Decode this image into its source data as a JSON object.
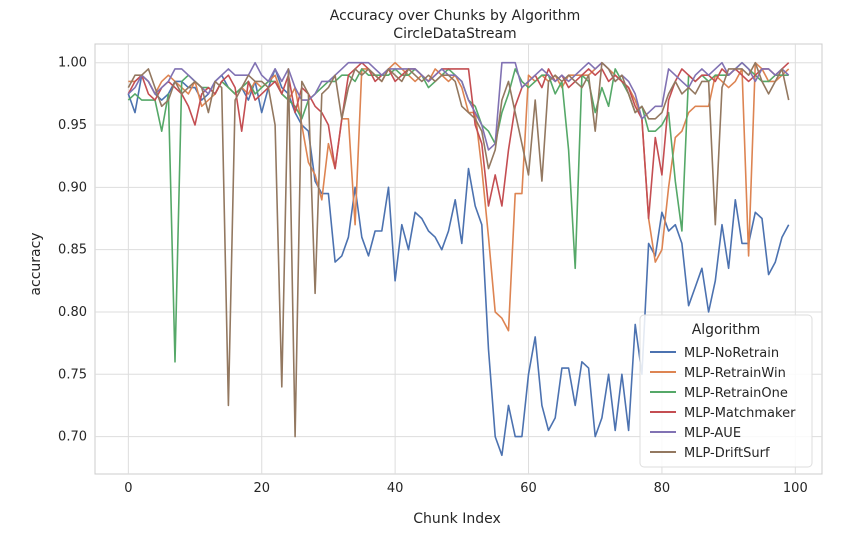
{
  "chart_data": {
    "type": "line",
    "title": "Accuracy over Chunks by Algorithm",
    "subtitle": "CircleDataStream",
    "xlabel": "Chunk Index",
    "ylabel": "accuracy",
    "xlim": [
      -5,
      104
    ],
    "ylim": [
      0.67,
      1.015
    ],
    "xticks": [
      0,
      20,
      40,
      60,
      80,
      100
    ],
    "yticks": [
      0.7,
      0.75,
      0.8,
      0.85,
      0.9,
      0.95,
      1.0
    ],
    "ytick_labels": [
      "0.70",
      "0.75",
      "0.80",
      "0.85",
      "0.90",
      "0.95",
      "1.00"
    ],
    "grid": true,
    "legend": {
      "title": "Algorithm",
      "placement": "lower-right"
    },
    "series": [
      {
        "name": "MLP-NoRetrain",
        "color": "#4c72b0",
        "values": [
          0.975,
          0.96,
          0.99,
          0.985,
          0.975,
          0.97,
          0.975,
          0.985,
          0.985,
          0.98,
          0.98,
          0.97,
          0.975,
          0.985,
          0.99,
          0.98,
          0.975,
          0.98,
          0.97,
          0.985,
          0.96,
          0.98,
          0.995,
          0.98,
          0.975,
          0.96,
          0.95,
          0.945,
          0.905,
          0.895,
          0.895,
          0.84,
          0.845,
          0.86,
          0.9,
          0.86,
          0.845,
          0.865,
          0.865,
          0.9,
          0.825,
          0.87,
          0.85,
          0.88,
          0.875,
          0.865,
          0.86,
          0.85,
          0.865,
          0.89,
          0.855,
          0.915,
          0.885,
          0.87,
          0.77,
          0.7,
          0.685,
          0.725,
          0.7,
          0.7,
          0.75,
          0.78,
          0.725,
          0.705,
          0.715,
          0.755,
          0.755,
          0.725,
          0.76,
          0.755,
          0.7,
          0.715,
          0.75,
          0.705,
          0.75,
          0.705,
          0.79,
          0.75,
          0.855,
          0.845,
          0.88,
          0.865,
          0.87,
          0.855,
          0.805,
          0.82,
          0.835,
          0.8,
          0.825,
          0.87,
          0.835,
          0.89,
          0.855,
          0.855,
          0.88,
          0.875,
          0.83,
          0.84,
          0.86,
          0.87
        ]
      },
      {
        "name": "MLP-RetrainWin",
        "color": "#dd8452",
        "values": [
          0.985,
          0.985,
          0.99,
          0.985,
          0.975,
          0.985,
          0.99,
          0.985,
          0.98,
          0.975,
          0.985,
          0.965,
          0.97,
          0.975,
          0.985,
          0.98,
          0.975,
          0.98,
          0.975,
          0.985,
          0.98,
          0.985,
          0.99,
          0.975,
          0.97,
          0.98,
          0.95,
          0.92,
          0.91,
          0.89,
          0.935,
          0.915,
          0.955,
          0.955,
          0.87,
          0.995,
          0.995,
          0.99,
          0.985,
          0.995,
          1.0,
          0.995,
          0.99,
          0.985,
          0.99,
          0.985,
          0.995,
          0.99,
          0.985,
          0.99,
          0.98,
          0.96,
          0.96,
          0.915,
          0.86,
          0.8,
          0.795,
          0.785,
          0.895,
          0.895,
          0.99,
          0.985,
          0.99,
          0.985,
          0.99,
          0.98,
          0.99,
          0.99,
          0.99,
          0.99,
          0.995,
          1.0,
          0.995,
          0.99,
          0.985,
          0.98,
          0.97,
          0.955,
          0.875,
          0.84,
          0.85,
          0.9,
          0.94,
          0.945,
          0.96,
          0.965,
          0.965,
          0.965,
          0.99,
          0.985,
          0.98,
          0.985,
          0.995,
          0.845,
          1.0,
          0.995,
          0.985,
          0.985,
          0.99,
          0.995
        ]
      },
      {
        "name": "MLP-RetrainOne",
        "color": "#55a868",
        "values": [
          0.97,
          0.975,
          0.97,
          0.97,
          0.97,
          0.945,
          0.975,
          0.76,
          0.985,
          0.99,
          0.985,
          0.98,
          0.98,
          0.975,
          0.985,
          0.98,
          0.975,
          0.98,
          0.985,
          0.975,
          0.98,
          0.985,
          0.985,
          0.975,
          0.97,
          0.965,
          0.955,
          0.97,
          0.975,
          0.98,
          0.985,
          0.985,
          0.99,
          0.99,
          0.985,
          0.995,
          0.99,
          0.99,
          0.99,
          0.99,
          0.995,
          0.99,
          0.99,
          0.995,
          0.99,
          0.98,
          0.985,
          0.99,
          0.995,
          0.99,
          0.985,
          0.97,
          0.965,
          0.95,
          0.945,
          0.935,
          0.96,
          0.975,
          0.995,
          0.985,
          0.98,
          0.985,
          0.99,
          0.99,
          0.975,
          0.985,
          0.93,
          0.835,
          0.99,
          0.985,
          0.96,
          0.98,
          0.965,
          0.995,
          0.985,
          0.975,
          0.96,
          0.965,
          0.945,
          0.945,
          0.95,
          0.96,
          0.905,
          0.865,
          0.99,
          0.985,
          0.99,
          0.985,
          0.99,
          0.99,
          0.99,
          0.995,
          1.0,
          0.995,
          0.99,
          0.985,
          0.985,
          0.99,
          0.99,
          0.99
        ]
      },
      {
        "name": "MLP-Matchmaker",
        "color": "#c44e52",
        "values": [
          0.975,
          0.985,
          0.99,
          0.975,
          0.97,
          0.98,
          0.985,
          0.98,
          0.975,
          0.965,
          0.95,
          0.975,
          0.98,
          0.975,
          0.985,
          0.99,
          0.98,
          0.945,
          0.985,
          0.97,
          0.975,
          0.98,
          0.985,
          0.975,
          0.99,
          0.96,
          0.98,
          0.975,
          0.965,
          0.96,
          0.95,
          0.915,
          0.955,
          0.99,
          0.995,
          1.0,
          0.995,
          0.985,
          0.99,
          0.995,
          0.985,
          0.99,
          0.995,
          0.995,
          0.99,
          0.985,
          0.99,
          0.995,
          0.995,
          0.995,
          0.995,
          0.995,
          0.95,
          0.935,
          0.885,
          0.91,
          0.885,
          0.93,
          0.965,
          0.98,
          0.985,
          0.99,
          0.98,
          0.995,
          0.985,
          0.99,
          0.98,
          0.985,
          0.99,
          0.995,
          0.99,
          0.995,
          0.985,
          0.99,
          0.985,
          0.98,
          0.965,
          0.955,
          0.875,
          0.94,
          0.91,
          0.97,
          0.985,
          0.995,
          0.99,
          0.985,
          0.99,
          0.99,
          0.985,
          0.995,
          0.99,
          0.995,
          0.99,
          0.985,
          0.99,
          0.995,
          0.995,
          0.99,
          0.995,
          1.0
        ]
      },
      {
        "name": "MLP-AUE",
        "color": "#8172b3",
        "values": [
          0.975,
          0.98,
          0.99,
          0.985,
          0.975,
          0.98,
          0.985,
          0.995,
          0.995,
          0.99,
          0.985,
          0.98,
          0.975,
          0.985,
          0.99,
          0.995,
          0.99,
          0.99,
          0.99,
          1.0,
          0.99,
          0.985,
          0.995,
          0.985,
          0.995,
          0.98,
          0.97,
          0.97,
          0.975,
          0.985,
          0.985,
          0.99,
          0.995,
          1.0,
          1.0,
          1.0,
          1.0,
          0.995,
          0.99,
          0.995,
          0.995,
          0.995,
          0.995,
          0.995,
          0.99,
          0.985,
          0.99,
          0.995,
          0.99,
          0.99,
          0.985,
          0.97,
          0.96,
          0.95,
          0.93,
          0.935,
          1.0,
          1.0,
          1.0,
          0.98,
          0.985,
          0.99,
          0.995,
          0.99,
          0.985,
          0.99,
          0.985,
          0.99,
          0.995,
          1.0,
          0.995,
          1.0,
          0.995,
          0.985,
          0.99,
          0.985,
          0.975,
          0.955,
          0.96,
          0.965,
          0.965,
          0.995,
          0.99,
          0.985,
          0.98,
          0.99,
          0.995,
          0.99,
          0.995,
          1.0,
          0.99,
          0.995,
          1.0,
          0.995,
          0.985,
          0.995,
          0.995,
          0.99,
          0.995,
          0.99
        ]
      },
      {
        "name": "MLP-DriftSurf",
        "color": "#937860",
        "values": [
          0.98,
          0.99,
          0.99,
          0.995,
          0.98,
          0.965,
          0.97,
          0.985,
          0.975,
          0.98,
          0.985,
          0.98,
          0.96,
          0.985,
          0.98,
          0.725,
          0.97,
          0.98,
          0.99,
          0.985,
          0.985,
          0.98,
          0.95,
          0.74,
          0.995,
          0.7,
          0.985,
          0.975,
          0.815,
          0.975,
          0.98,
          0.99,
          0.955,
          0.98,
          0.995,
          0.99,
          0.995,
          0.99,
          0.985,
          0.995,
          0.99,
          0.985,
          0.995,
          0.99,
          0.985,
          0.99,
          0.985,
          0.99,
          0.99,
          0.985,
          0.965,
          0.96,
          0.955,
          0.945,
          0.915,
          0.93,
          0.97,
          0.985,
          0.96,
          0.935,
          0.91,
          0.97,
          0.905,
          0.985,
          0.99,
          0.985,
          0.99,
          0.985,
          0.98,
          0.99,
          0.945,
          1.0,
          0.995,
          0.985,
          0.99,
          0.975,
          0.96,
          0.965,
          0.955,
          0.955,
          0.96,
          0.975,
          0.985,
          0.975,
          0.98,
          0.975,
          0.985,
          0.985,
          0.87,
          0.98,
          0.995,
          0.995,
          0.995,
          0.99,
          1.0,
          0.985,
          0.975,
          0.985,
          0.995,
          0.97
        ]
      }
    ]
  }
}
